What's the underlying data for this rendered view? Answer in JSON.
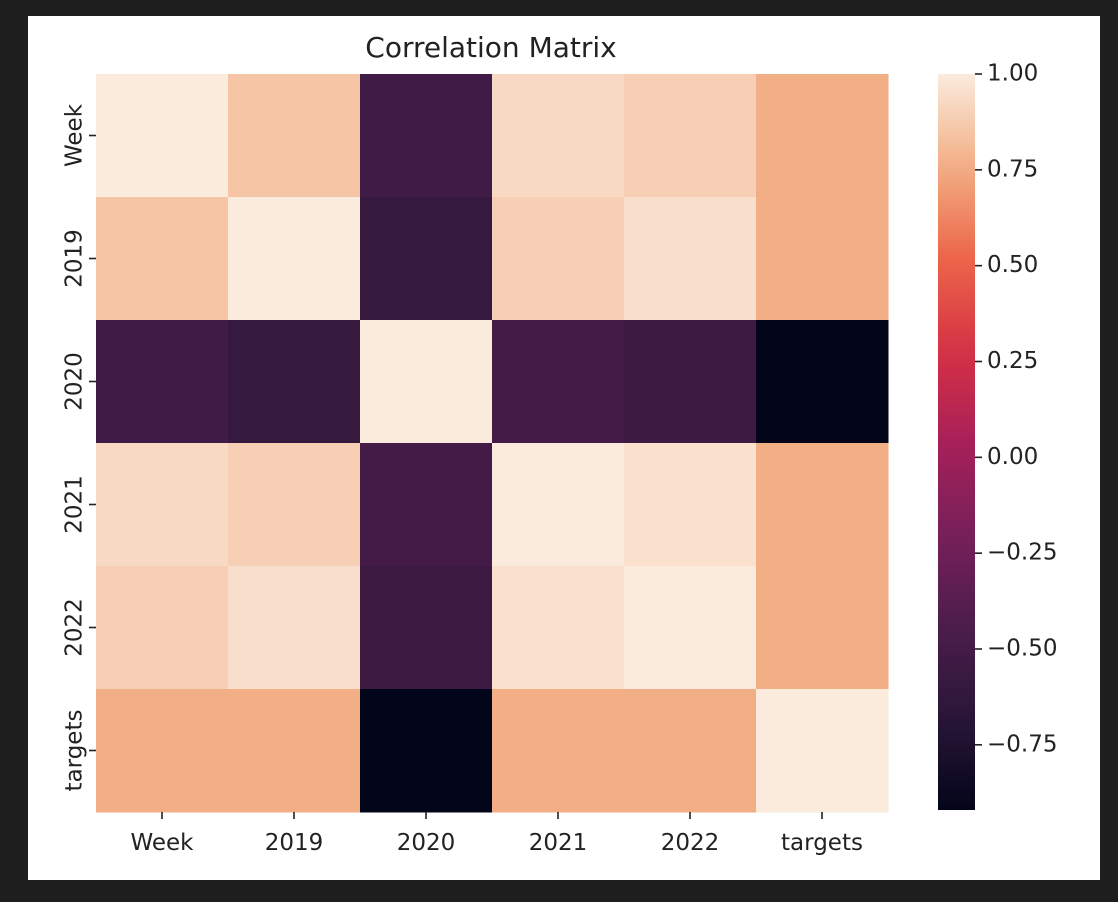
{
  "chart_data": {
    "type": "heatmap",
    "title": "Correlation Matrix",
    "x_labels": [
      "Week",
      "2019",
      "2020",
      "2021",
      "2022",
      "targets"
    ],
    "y_labels": [
      "Week",
      "2019",
      "2020",
      "2021",
      "2022",
      "targets"
    ],
    "values": [
      [
        1.0,
        0.85,
        -0.52,
        0.93,
        0.89,
        0.76
      ],
      [
        0.85,
        1.0,
        -0.6,
        0.89,
        0.95,
        0.76
      ],
      [
        -0.52,
        -0.6,
        1.0,
        -0.5,
        -0.55,
        -0.92
      ],
      [
        0.93,
        0.89,
        -0.5,
        1.0,
        0.96,
        0.76
      ],
      [
        0.89,
        0.95,
        -0.55,
        0.96,
        1.0,
        0.76
      ],
      [
        0.76,
        0.76,
        -0.92,
        0.76,
        0.76,
        1.0
      ]
    ],
    "colorbar": {
      "min": -0.92,
      "max": 1.0,
      "ticks": [
        1.0,
        0.75,
        0.5,
        0.25,
        0.0,
        -0.25,
        -0.5,
        -0.75
      ],
      "tick_labels": [
        "1.00",
        "0.75",
        "0.50",
        "0.25",
        "0.00",
        "−0.25",
        "−0.50",
        "−0.75"
      ]
    },
    "colormap": "rocket",
    "grid": false
  }
}
